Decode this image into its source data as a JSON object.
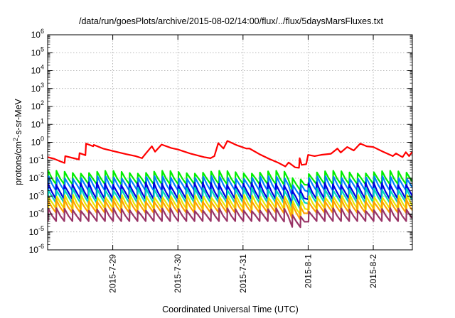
{
  "chart_data": {
    "type": "line",
    "title": "/data/run/goesPlots/archive/2015-08-02/14:00/flux/../flux/5daysMarsFluxes.txt",
    "xlabel": "Coordinated Universal Time (UTC)",
    "ylabel": "protons/cm2-s-sr-MeV",
    "ylabel_parts": {
      "pre": "protons/cm",
      "sup": "2",
      "post": "-s-sr-MeV"
    },
    "yscale": "log",
    "ylim": [
      1e-06,
      1000000.0
    ],
    "ytick_exponents": [
      -6,
      -5,
      -4,
      -3,
      -2,
      -1,
      0,
      1,
      2,
      3,
      4,
      5,
      6
    ],
    "ytick_base": "10",
    "xlim": [
      0,
      5.6
    ],
    "x_unit": "days since 2015-07-28 00:00 UTC (approx.)",
    "x_ticks": [
      {
        "x": 1,
        "label": "2015-7-29"
      },
      {
        "x": 2,
        "label": "2015-7-30"
      },
      {
        "x": 3,
        "label": "2015-7-31"
      },
      {
        "x": 4,
        "label": "2015-8-1"
      },
      {
        "x": 5,
        "label": "2015-8-2"
      }
    ],
    "grid": true,
    "legend": "none",
    "series": [
      {
        "color": "#ff0000",
        "width": 2.2,
        "kind": "envelope",
        "points": [
          [
            0.0,
            0.15
          ],
          [
            0.1,
            0.12
          ],
          [
            0.2,
            0.085
          ],
          [
            0.26,
            0.07
          ],
          [
            0.27,
            0.17
          ],
          [
            0.4,
            0.13
          ],
          [
            0.48,
            0.11
          ],
          [
            0.49,
            0.25
          ],
          [
            0.58,
            0.19
          ],
          [
            0.59,
            0.85
          ],
          [
            0.7,
            0.6
          ],
          [
            0.71,
            0.72
          ],
          [
            0.85,
            0.45
          ],
          [
            1.0,
            0.33
          ],
          [
            1.2,
            0.22
          ],
          [
            1.35,
            0.17
          ],
          [
            1.45,
            0.13
          ],
          [
            1.5,
            0.22
          ],
          [
            1.6,
            0.6
          ],
          [
            1.65,
            0.3
          ],
          [
            1.75,
            0.75
          ],
          [
            1.9,
            0.48
          ],
          [
            2.0,
            0.4
          ],
          [
            2.2,
            0.23
          ],
          [
            2.4,
            0.15
          ],
          [
            2.5,
            0.13
          ],
          [
            2.56,
            0.17
          ],
          [
            2.62,
            0.9
          ],
          [
            2.7,
            0.45
          ],
          [
            2.76,
            1.2
          ],
          [
            2.9,
            0.7
          ],
          [
            3.05,
            0.45
          ],
          [
            3.1,
            0.45
          ],
          [
            3.25,
            0.22
          ],
          [
            3.4,
            0.12
          ],
          [
            3.55,
            0.07
          ],
          [
            3.65,
            0.045
          ],
          [
            3.7,
            0.075
          ],
          [
            3.8,
            0.04
          ],
          [
            3.86,
            0.038
          ],
          [
            3.87,
            0.13
          ],
          [
            3.9,
            0.055
          ],
          [
            3.97,
            0.06
          ],
          [
            4.0,
            0.2
          ],
          [
            4.1,
            0.17
          ],
          [
            4.2,
            0.2
          ],
          [
            4.35,
            0.23
          ],
          [
            4.45,
            0.45
          ],
          [
            4.5,
            0.27
          ],
          [
            4.6,
            0.55
          ],
          [
            4.7,
            0.35
          ],
          [
            4.8,
            0.85
          ],
          [
            4.9,
            0.6
          ],
          [
            5.0,
            0.55
          ],
          [
            5.15,
            0.3
          ],
          [
            5.3,
            0.17
          ],
          [
            5.35,
            0.24
          ],
          [
            5.42,
            0.17
          ],
          [
            5.45,
            0.15
          ],
          [
            5.5,
            0.28
          ],
          [
            5.55,
            0.17
          ],
          [
            5.6,
            0.3
          ]
        ]
      },
      {
        "color": "#00ee00",
        "width": 2.2,
        "kind": "saw",
        "low": 0.0045,
        "high": 0.022
      },
      {
        "color": "#0080ff",
        "width": 2.2,
        "kind": "saw",
        "low": 0.0018,
        "high": 0.011
      },
      {
        "color": "#0000e0",
        "width": 2.2,
        "kind": "saw",
        "low": 0.0007,
        "high": 0.005
      },
      {
        "color": "#00d4c0",
        "width": 2.2,
        "kind": "saw",
        "low": 0.0004,
        "high": 0.0025
      },
      {
        "color": "#e8e800",
        "width": 2.2,
        "kind": "saw",
        "low": 0.00018,
        "high": 0.001
      },
      {
        "color": "#ffa000",
        "width": 2.2,
        "kind": "saw",
        "low": 0.00012,
        "high": 0.0006
      },
      {
        "color": "#993366",
        "width": 2.2,
        "kind": "saw",
        "low": 4e-05,
        "high": 0.00018
      }
    ],
    "saw_period_days": 0.125,
    "dip": {
      "center": 3.82,
      "width": 0.12,
      "factor": 0.3
    },
    "colors": {
      "background": "#ffffff",
      "frame": "#000000",
      "grid": "#a0a0a0"
    }
  }
}
